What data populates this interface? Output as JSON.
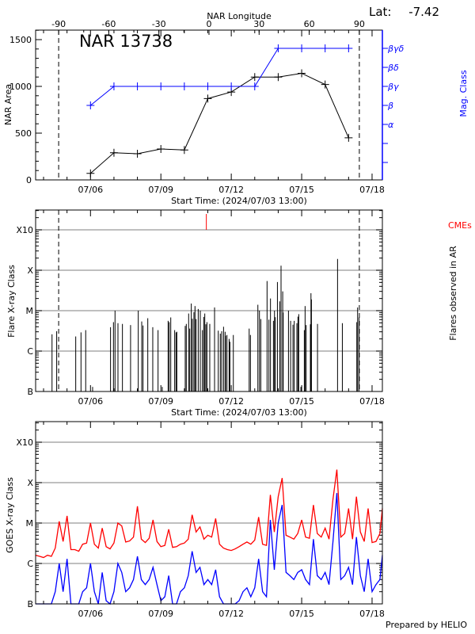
{
  "header": {
    "lat_label": "Lat:",
    "lat_value": "-7.42"
  },
  "footer": {
    "credit": "Prepared by HELIO"
  },
  "colors": {
    "area": "#000000",
    "mag_class": "#0000ff",
    "cme": "#ff0000",
    "goes_long": "#ff0000",
    "goes_short": "#0000ff",
    "grid": "#999999"
  },
  "chart_data": [
    {
      "type": "line",
      "title": "NAR 13738",
      "top_axis_label": "NAR Longitude",
      "top_ticks": [
        "-90",
        "-60",
        "-30",
        "0",
        "30",
        "60",
        "90"
      ],
      "limb_longitudes": [
        -90,
        90
      ],
      "xlabel": "Start Time: (2024/07/03 13:00)",
      "xlim": [
        "07/03 16:00",
        "07/18 11:00"
      ],
      "x_ticks": [
        "07/06",
        "07/09",
        "07/12",
        "07/15",
        "07/18"
      ],
      "ylabel": "NAR Area",
      "ylim": [
        0,
        1600
      ],
      "y_ticks": [
        "0",
        "500",
        "1000",
        "1500"
      ],
      "y2label": "Mag. Class",
      "mag_classes": [
        "α",
        "β",
        "βγ",
        "βδ",
        "βγδ"
      ],
      "grid": false,
      "area": {
        "dates": [
          "07/06",
          "07/07",
          "07/08",
          "07/09",
          "07/10",
          "07/11",
          "07/12",
          "07/13",
          "07/14",
          "07/15",
          "07/16",
          "07/17"
        ],
        "values": [
          70,
          290,
          280,
          330,
          320,
          870,
          940,
          1100,
          1100,
          1140,
          1020,
          450
        ]
      },
      "mag_class": {
        "dates": [
          "07/06",
          "07/07",
          "07/08",
          "07/09",
          "07/10",
          "07/11",
          "07/12",
          "07/13",
          "07/14",
          "07/15",
          "07/16",
          "07/17"
        ],
        "values": [
          "β",
          "βγ",
          "βγ",
          "βγ",
          "βγ",
          "βγ",
          "βγ",
          "βγ",
          "βγδ",
          "βγδ",
          "βγδ",
          "βγδ"
        ]
      }
    },
    {
      "type": "bar",
      "xlabel": "Start Time: (2024/07/03 13:00)",
      "x_ticks": [
        "07/06",
        "07/09",
        "07/12",
        "07/15",
        "07/18"
      ],
      "ylabel": "Flare X-ray Class",
      "y2label": "Flares observed in AR",
      "y_ticks": [
        "B",
        "C",
        "M",
        "X",
        "X10"
      ],
      "yscale": "log",
      "grid": true,
      "cme_label": "CMEs",
      "cmes": [
        "07/10 22:30"
      ],
      "flares": [
        [
          "07/04 08:40",
          "C2.6"
        ],
        [
          "07/04 13:25",
          "C3.1"
        ],
        [
          "07/05 08:54",
          "C2.3"
        ],
        [
          "07/05 14:18",
          "C2.9"
        ],
        [
          "07/05 19:06",
          "C3.3"
        ],
        [
          "07/06 02:10",
          "B1.3"
        ],
        [
          "07/06 20:30",
          "C3.9"
        ],
        [
          "07/06 23:30",
          "C5.2"
        ],
        [
          "07/07 01:06",
          "M1.0"
        ],
        [
          "07/07 04:06",
          "C4.9"
        ],
        [
          "07/07 08:40",
          "C4.7"
        ],
        [
          "07/07 17:00",
          "C4.4"
        ],
        [
          "07/08 00:52",
          "M1.0"
        ],
        [
          "07/08 04:24",
          "C5.4"
        ],
        [
          "07/08 05:44",
          "C4.3"
        ],
        [
          "07/08 10:36",
          "C6.5"
        ],
        [
          "07/08 15:42",
          "C3.9"
        ],
        [
          "07/08 21:06",
          "C3.3"
        ],
        [
          "07/09 01:24",
          "B1.3"
        ],
        [
          "07/09 07:24",
          "C5.6"
        ],
        [
          "07/09 08:30",
          "C5.2"
        ],
        [
          "07/09 10:06",
          "C6.8"
        ],
        [
          "07/09 14:06",
          "C3.3"
        ],
        [
          "07/09 15:30",
          "C2.9"
        ],
        [
          "07/09 16:18",
          "C3.0"
        ],
        [
          "07/10 00:54",
          "C4.2"
        ],
        [
          "07/10 02:00",
          "C4.7"
        ],
        [
          "07/10 04:24",
          "C8.5"
        ],
        [
          "07/10 05:30",
          "C3.6"
        ],
        [
          "07/10 07:06",
          "M1.5"
        ],
        [
          "07/10 08:12",
          "C6.3"
        ],
        [
          "07/10 09:48",
          "C9.2"
        ],
        [
          "07/10 10:54",
          "M1.3"
        ],
        [
          "07/10 12:00",
          "C6.2"
        ],
        [
          "07/10 14:12",
          "M1.1"
        ],
        [
          "07/10 16:18",
          "M1.0"
        ],
        [
          "07/10 18:30",
          "C3.3"
        ],
        [
          "07/10 19:48",
          "C7.0"
        ],
        [
          "07/10 20:54",
          "C8.5"
        ],
        [
          "07/10 22:00",
          "C4.6"
        ],
        [
          "07/10 23:06",
          "C5.2"
        ],
        [
          "07/11 02:00",
          "C4.7"
        ],
        [
          "07/11 06:54",
          "M1.2"
        ],
        [
          "07/11 10:42",
          "C3.2"
        ],
        [
          "07/11 12:48",
          "C2.7"
        ],
        [
          "07/11 14:12",
          "C3.1"
        ],
        [
          "07/11 16:06",
          "C4.0"
        ],
        [
          "07/11 17:42",
          "C3.0"
        ],
        [
          "07/11 18:12",
          "C2.4"
        ],
        [
          "07/11 19:36",
          "C2.5"
        ],
        [
          "07/11 21:48",
          "C2.0"
        ],
        [
          "07/11 22:36",
          "C1.7"
        ],
        [
          "07/12 02:06",
          "C2.5"
        ],
        [
          "07/12 18:18",
          "C3.6"
        ],
        [
          "07/12 19:36",
          "C2.5"
        ],
        [
          "07/13 03:12",
          "M1.4"
        ],
        [
          "07/13 04:48",
          "M1.0"
        ],
        [
          "07/13 06:12",
          "C6.2"
        ],
        [
          "07/13 12:36",
          "M5.4"
        ],
        [
          "07/13 14:30",
          "C6.0"
        ],
        [
          "07/13 16:06",
          "M2.0"
        ],
        [
          "07/13 19:06",
          "C5.6"
        ],
        [
          "07/13 20:12",
          "M1.0"
        ],
        [
          "07/13 21:00",
          "C6.9"
        ],
        [
          "07/13 23:12",
          "M5.1"
        ],
        [
          "07/14 01:36",
          "M1.7"
        ],
        [
          "07/14 02:54",
          "X1.3"
        ],
        [
          "07/14 04:36",
          "M3.0"
        ],
        [
          "07/14 05:06",
          "C9.0"
        ],
        [
          "07/14 10:30",
          "M1.0"
        ],
        [
          "07/14 12:42",
          "C5.6"
        ],
        [
          "07/14 15:06",
          "C4.5"
        ],
        [
          "07/14 16:24",
          "C5.6"
        ],
        [
          "07/14 19:06",
          "C4.9"
        ],
        [
          "07/14 20:12",
          "C7.1"
        ],
        [
          "07/14 21:00",
          "C8.2"
        ],
        [
          "07/14 23:12",
          "B1.3"
        ],
        [
          "07/15 02:42",
          "C3.3"
        ],
        [
          "07/15 03:30",
          "M1.3"
        ],
        [
          "07/15 04:36",
          "C4.4"
        ],
        [
          "07/15 08:54",
          "C4.6"
        ],
        [
          "07/15 09:30",
          "M2.7"
        ],
        [
          "07/15 10:00",
          "M1.9"
        ],
        [
          "07/15 16:12",
          "C4.7"
        ],
        [
          "07/16 12:42",
          "X1.9"
        ],
        [
          "07/16 17:36",
          "C4.9"
        ],
        [
          "07/17 08:24",
          "C5.2"
        ],
        [
          "07/17 09:12",
          "M1.2"
        ],
        [
          "07/17 10:36",
          "C6.8"
        ]
      ]
    },
    {
      "type": "line",
      "ylabel": "GOES X-ray Class",
      "x_ticks": [
        "07/06",
        "07/09",
        "07/12",
        "07/15",
        "07/18"
      ],
      "y_ticks": [
        "B",
        "C",
        "M",
        "X",
        "X10"
      ],
      "yscale": "log",
      "grid": true,
      "start": "07/03 16:00",
      "step_hours": 4,
      "series": [
        {
          "color": "#ff0000",
          "values": [
            1.6e-06,
            1.5e-06,
            1.4e-06,
            1.6e-06,
            1.5e-06,
            2.4e-06,
            1.1e-05,
            3.5e-06,
            1.5e-05,
            2.2e-06,
            2.2e-06,
            2e-06,
            3e-06,
            3.2e-06,
            1e-05,
            3e-06,
            2.4e-06,
            7.5e-06,
            2.6e-06,
            2.3e-06,
            3.2e-06,
            1e-05,
            8.5e-06,
            3.4e-06,
            3.6e-06,
            4.5e-06,
            2.6e-05,
            4e-06,
            3.3e-06,
            4.2e-06,
            1.2e-05,
            3.5e-06,
            2.6e-06,
            2.8e-06,
            7e-06,
            2.5e-06,
            2.6e-06,
            3e-06,
            3.2e-06,
            4e-06,
            1.6e-05,
            6e-06,
            8e-06,
            4e-06,
            5e-06,
            4.5e-06,
            1.3e-05,
            3e-06,
            2.4e-06,
            2.2e-06,
            2.1e-06,
            2.3e-06,
            2.6e-06,
            3e-06,
            3.4e-06,
            3e-06,
            3.8e-06,
            1.4e-05,
            3e-06,
            2.8e-06,
            5e-05,
            6e-06,
            4.5e-05,
            0.00013,
            5e-06,
            4.5e-06,
            4e-06,
            5.5e-06,
            1.2e-05,
            4.5e-06,
            4.2e-06,
            2.8e-05,
            5.5e-06,
            4.5e-06,
            7.5e-06,
            4e-06,
            3.9e-05,
            0.00021,
            4.5e-06,
            5.5e-06,
            2.3e-05,
            4e-06,
            4.5e-05,
            6e-06,
            3.5e-06,
            2.3e-05,
            3.3e-06,
            3.5e-06,
            5.5e-06,
            2.3e-05
          ]
        },
        {
          "color": "#0000ff",
          "values": [
            5e-08,
            4e-08,
            5e-08,
            4e-08,
            6e-08,
            2e-07,
            1e-06,
            2e-07,
            1.3e-06,
            8e-08,
            8e-08,
            6e-08,
            2e-07,
            2.5e-07,
            1e-06,
            2e-07,
            1e-07,
            6e-07,
            1.2e-07,
            1e-07,
            2e-07,
            1e-06,
            6e-07,
            2e-07,
            2.5e-07,
            4e-07,
            1.5e-06,
            4e-07,
            3e-07,
            4e-07,
            8e-07,
            3e-07,
            1.2e-07,
            1.5e-07,
            5e-07,
            1e-07,
            1e-07,
            2e-07,
            2.5e-07,
            5e-07,
            2e-06,
            6e-07,
            8e-07,
            3e-07,
            4e-07,
            3e-07,
            7e-07,
            1.5e-07,
            1e-07,
            8e-08,
            7e-08,
            8e-08,
            1.2e-07,
            2e-07,
            2.5e-07,
            1.5e-07,
            2.5e-07,
            1.3e-06,
            2e-07,
            1.5e-07,
            1.2e-05,
            7e-07,
            1e-05,
            2.8e-05,
            6e-07,
            5e-07,
            4e-07,
            6e-07,
            7e-07,
            4e-07,
            3e-07,
            4e-06,
            5e-07,
            4e-07,
            6e-07,
            3e-07,
            3.5e-06,
            5.5e-05,
            4e-07,
            5e-07,
            8e-07,
            3e-07,
            4.5e-06,
            5e-07,
            2e-07,
            1.3e-06,
            2e-07,
            3e-07,
            4e-07,
            1.6e-06
          ]
        }
      ]
    }
  ]
}
